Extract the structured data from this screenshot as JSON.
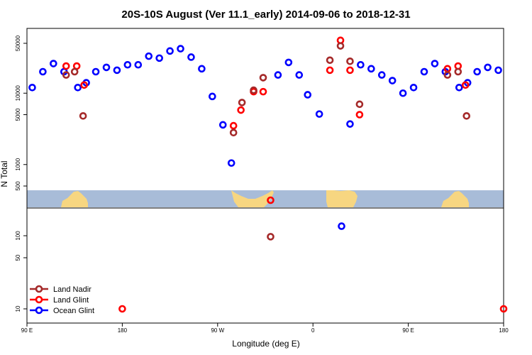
{
  "chart_data": {
    "type": "scatter",
    "title": "20S-10S August (Ver 11.1_early)   2014-09-06 to 2018-12-31",
    "xlabel": "Longitude (deg E)",
    "ylabel": "N Total",
    "x_axis": {
      "range_deg": [
        90,
        450
      ],
      "ticks": [
        {
          "value": 90,
          "label": "90 E"
        },
        {
          "value": 180,
          "label": "180"
        },
        {
          "value": 270,
          "label": "90 W"
        },
        {
          "value": 360,
          "label": "0"
        },
        {
          "value": 450,
          "label": "90 E"
        },
        {
          "value": 540,
          "label": "180"
        }
      ],
      "display_range": [
        90,
        540
      ]
    },
    "upper_panel": {
      "scale": "log",
      "yticks": [
        500,
        1000,
        5000,
        10000,
        50000
      ],
      "ytick_labels": [
        "500",
        "1000",
        "5000",
        "10000",
        "50000"
      ],
      "ylim": [
        300,
        62000
      ]
    },
    "lower_panel": {
      "scale": "log",
      "yticks": [
        10,
        50,
        100
      ],
      "ytick_labels": [
        "10",
        "50",
        "100"
      ],
      "ylim": [
        7,
        250
      ]
    },
    "legend": {
      "placement": "bottom-left",
      "entries": [
        {
          "label": "Land Nadir",
          "color": "#a52a2a"
        },
        {
          "label": "Land Glint",
          "color": "#ff0000"
        },
        {
          "label": "Ocean Glint",
          "color": "#0000ff"
        }
      ]
    },
    "series": [
      {
        "name": "Ocean Glint",
        "color": "#0000ff",
        "panel": "upper",
        "points": [
          {
            "x": 95,
            "y": 12000
          },
          {
            "x": 105,
            "y": 20000
          },
          {
            "x": 115,
            "y": 26000
          },
          {
            "x": 125,
            "y": 20000
          },
          {
            "x": 138,
            "y": 12000
          },
          {
            "x": 146,
            "y": 14000
          },
          {
            "x": 155,
            "y": 20000
          },
          {
            "x": 165,
            "y": 23000
          },
          {
            "x": 175,
            "y": 21000
          },
          {
            "x": 185,
            "y": 25000
          },
          {
            "x": 195,
            "y": 25000
          },
          {
            "x": 205,
            "y": 33000
          },
          {
            "x": 215,
            "y": 31000
          },
          {
            "x": 225,
            "y": 39000
          },
          {
            "x": 235,
            "y": 42000
          },
          {
            "x": 245,
            "y": 32000
          },
          {
            "x": 255,
            "y": 22000
          },
          {
            "x": 265,
            "y": 9000
          },
          {
            "x": 275,
            "y": 3600
          },
          {
            "x": 283,
            "y": 1050
          },
          {
            "x": 327,
            "y": 18000
          },
          {
            "x": 337,
            "y": 27000
          },
          {
            "x": 347,
            "y": 18000
          },
          {
            "x": 355,
            "y": 9500
          },
          {
            "x": 366,
            "y": 5100
          },
          {
            "x": 395,
            "y": 3700
          },
          {
            "x": 405,
            "y": 25000
          },
          {
            "x": 415,
            "y": 22000
          },
          {
            "x": 425,
            "y": 18000
          },
          {
            "x": 435,
            "y": 15000
          },
          {
            "x": 445,
            "y": 10000
          },
          {
            "x": 455,
            "y": 12000
          },
          {
            "x": 465,
            "y": 20000
          },
          {
            "x": 475,
            "y": 26000
          },
          {
            "x": 485,
            "y": 20000
          },
          {
            "x": 498,
            "y": 12000
          },
          {
            "x": 506,
            "y": 14000
          },
          {
            "x": 515,
            "y": 20000
          },
          {
            "x": 525,
            "y": 23000
          },
          {
            "x": 535,
            "y": 21000
          }
        ]
      },
      {
        "name": "Ocean Glint",
        "color": "#0000ff",
        "panel": "lower",
        "points": [
          {
            "x": 387,
            "y": 135
          }
        ]
      },
      {
        "name": "Land Glint",
        "color": "#ff0000",
        "panel": "upper",
        "points": [
          {
            "x": 127,
            "y": 24000
          },
          {
            "x": 137,
            "y": 24000
          },
          {
            "x": 144,
            "y": 13000
          },
          {
            "x": 285,
            "y": 3500
          },
          {
            "x": 292,
            "y": 5800
          },
          {
            "x": 304,
            "y": 10500
          },
          {
            "x": 313,
            "y": 10500
          },
          {
            "x": 376,
            "y": 21000
          },
          {
            "x": 386,
            "y": 55000
          },
          {
            "x": 395,
            "y": 21000
          },
          {
            "x": 404,
            "y": 5000
          },
          {
            "x": 487,
            "y": 22000
          },
          {
            "x": 497,
            "y": 24000
          },
          {
            "x": 504,
            "y": 13000
          }
        ]
      },
      {
        "name": "Land Glint",
        "color": "#ff0000",
        "panel": "lower",
        "points": [
          {
            "x": 180,
            "y": 10
          },
          {
            "x": 540,
            "y": 10
          }
        ]
      },
      {
        "name": "Land Glint",
        "color": "#ff0000",
        "panel": "strip",
        "points": [
          {
            "x": 320,
            "y": null
          }
        ]
      },
      {
        "name": "Land Nadir",
        "color": "#a52a2a",
        "panel": "upper",
        "points": [
          {
            "x": 127,
            "y": 18000
          },
          {
            "x": 135,
            "y": 20000
          },
          {
            "x": 143,
            "y": 4800
          },
          {
            "x": 285,
            "y": 2800
          },
          {
            "x": 293,
            "y": 7400
          },
          {
            "x": 304,
            "y": 11000
          },
          {
            "x": 313,
            "y": 16500
          },
          {
            "x": 376,
            "y": 29000
          },
          {
            "x": 386,
            "y": 46000
          },
          {
            "x": 395,
            "y": 28000
          },
          {
            "x": 404,
            "y": 7000
          },
          {
            "x": 487,
            "y": 18000
          },
          {
            "x": 497,
            "y": 20000
          },
          {
            "x": 505,
            "y": 4800
          }
        ]
      },
      {
        "name": "Land Nadir",
        "color": "#a52a2a",
        "panel": "lower",
        "points": [
          {
            "x": 320,
            "y": 97
          }
        ]
      }
    ]
  }
}
